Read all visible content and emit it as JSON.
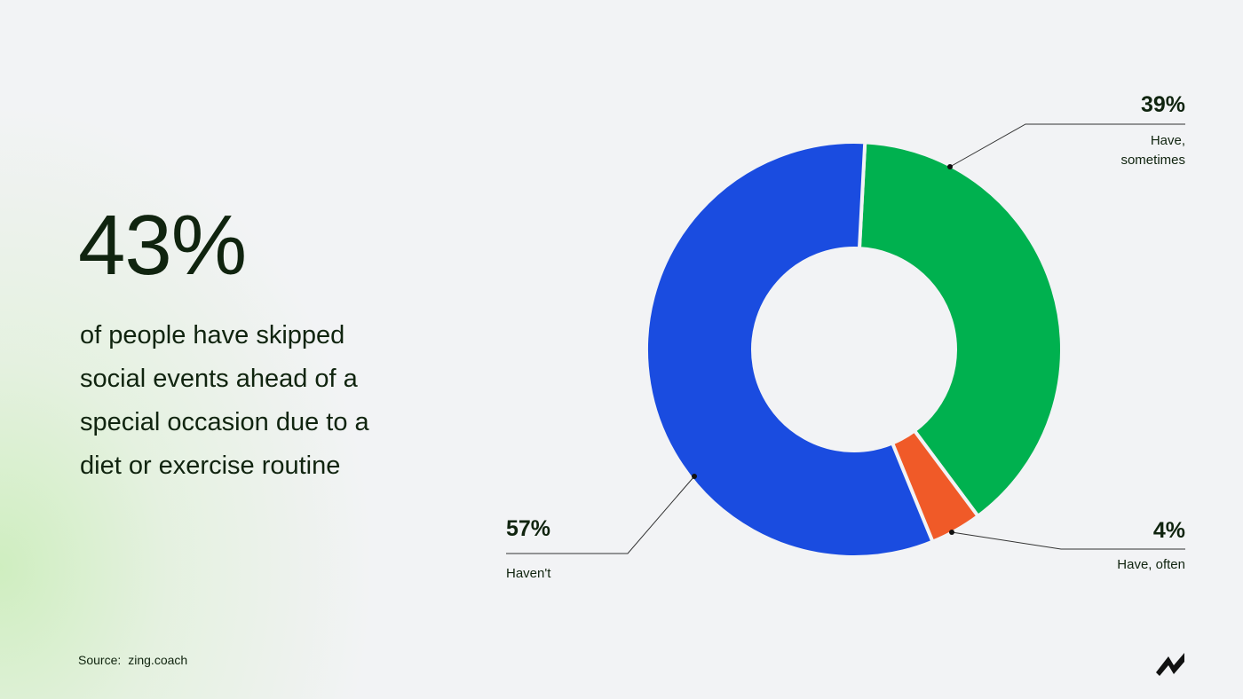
{
  "headline": {
    "stat": "43%",
    "text": "of people have skipped social events ahead of a special occasion due to a diet or exercise routine"
  },
  "chart_data": {
    "type": "donut",
    "categories": [
      "Have, sometimes",
      "Have, often",
      "Haven't"
    ],
    "values": [
      39,
      4,
      57
    ],
    "value_labels": [
      "39%",
      "4%",
      "57%"
    ],
    "colors": [
      "#00b14f",
      "#f05a28",
      "#1a4ce0"
    ]
  },
  "source": {
    "label": "Source:",
    "value": "zing.coach"
  }
}
